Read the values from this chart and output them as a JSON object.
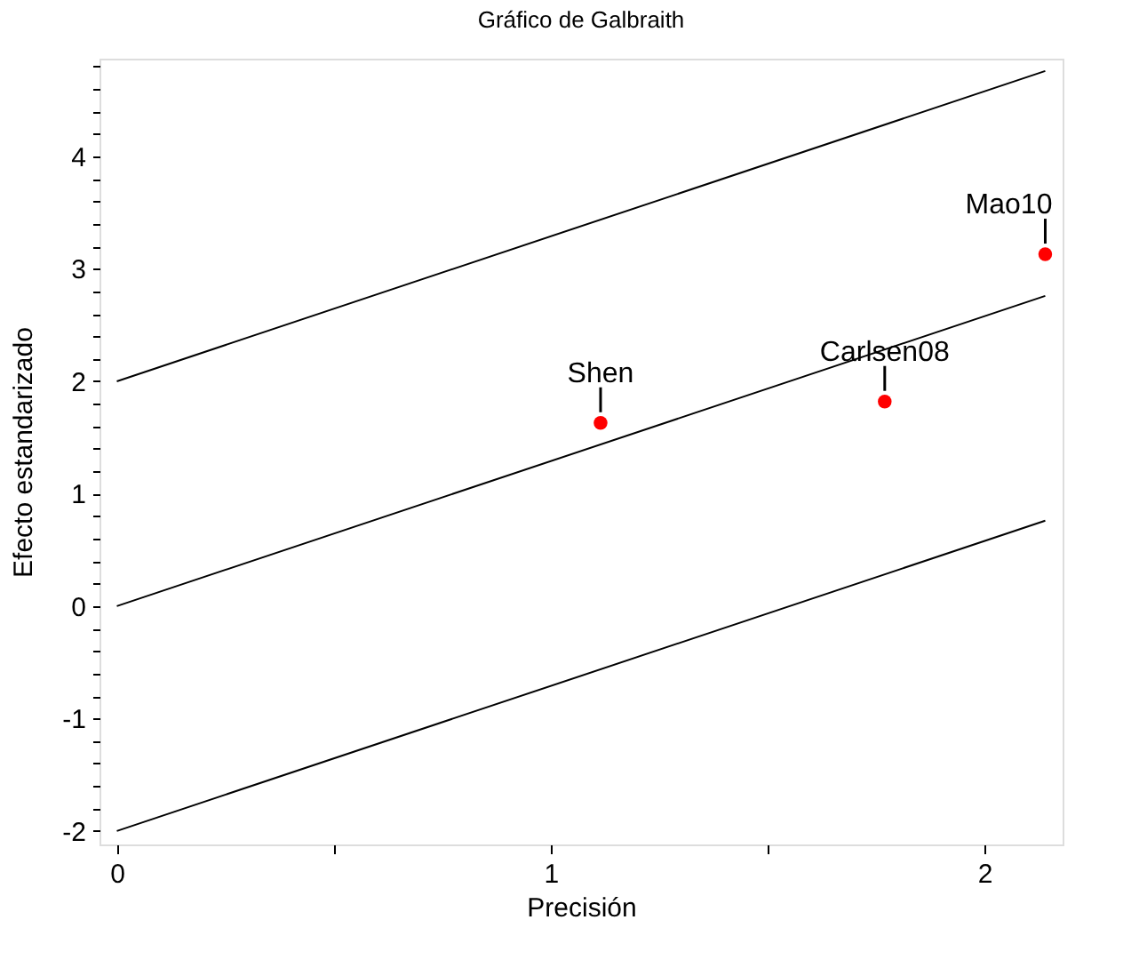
{
  "chart_data": {
    "type": "scatter",
    "title": "Gráfico de Galbraith",
    "xlabel": "Precisión",
    "ylabel": "Efecto estandarizado",
    "xlim": [
      -0.04,
      2.18
    ],
    "ylim": [
      -2.12,
      4.87
    ],
    "xticks": [
      0,
      {
        "value": 0.5,
        "label": null
      },
      1,
      {
        "value": 1.5,
        "label": null
      },
      2
    ],
    "yticks": [
      -2,
      {
        "value": -1.8,
        "label": null
      },
      {
        "value": -1.6,
        "label": null
      },
      {
        "value": -1.4,
        "label": null
      },
      {
        "value": -1.2,
        "label": null
      },
      -1,
      {
        "value": -0.8,
        "label": null
      },
      {
        "value": -0.6,
        "label": null
      },
      {
        "value": -0.4,
        "label": null
      },
      {
        "value": -0.2,
        "label": null
      },
      0,
      {
        "value": 0.2,
        "label": null
      },
      {
        "value": 0.4,
        "label": null
      },
      {
        "value": 0.6,
        "label": null
      },
      {
        "value": 0.8,
        "label": null
      },
      1,
      {
        "value": 1.2,
        "label": null
      },
      {
        "value": 1.4,
        "label": null
      },
      {
        "value": 1.6,
        "label": null
      },
      {
        "value": 1.8,
        "label": null
      },
      2,
      {
        "value": 2.2,
        "label": null
      },
      {
        "value": 2.4,
        "label": null
      },
      {
        "value": 2.6,
        "label": null
      },
      {
        "value": 2.8,
        "label": null
      },
      3,
      {
        "value": 3.2,
        "label": null
      },
      {
        "value": 3.4,
        "label": null
      },
      {
        "value": 3.6,
        "label": null
      },
      {
        "value": 3.8,
        "label": null
      },
      4,
      {
        "value": 4.2,
        "label": null
      },
      {
        "value": 4.4,
        "label": null
      },
      {
        "value": 4.6,
        "label": null
      },
      {
        "value": 4.8,
        "label": null
      }
    ],
    "grid": false,
    "series": [
      {
        "color": "#ff0000",
        "marker": "circle",
        "x": [
          1.115,
          1.77,
          2.14
        ],
        "values": [
          1.63,
          1.82,
          3.13
        ]
      },
      {
        "type": "line",
        "color": "#000000",
        "x": [
          0,
          2.14
        ],
        "values": [
          2,
          4.76
        ]
      },
      {
        "type": "line",
        "color": "#000000",
        "x": [
          0,
          2.14
        ],
        "values": [
          0,
          2.76
        ]
      },
      {
        "type": "line",
        "color": "#000000",
        "x": [
          0,
          2.14
        ],
        "values": [
          -2,
          0.76
        ]
      }
    ],
    "annotations": [
      {
        "text": "Shen",
        "x": 1.115,
        "y": 1.63
      },
      {
        "text": "Carlsen08",
        "x": 1.77,
        "y": 1.82
      },
      {
        "text": "Mao10",
        "x": 2.14,
        "y": 3.13
      }
    ]
  }
}
